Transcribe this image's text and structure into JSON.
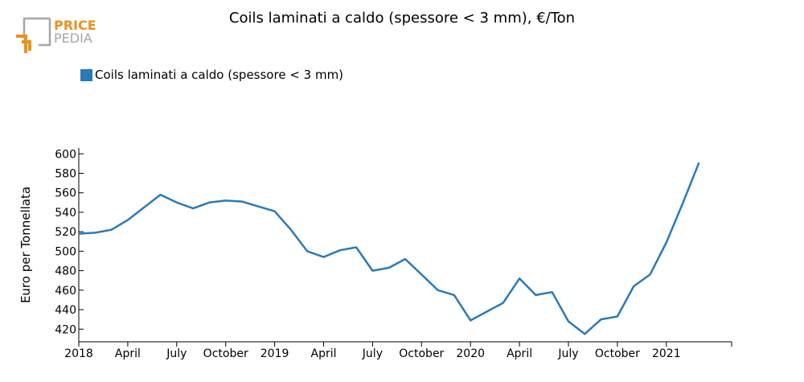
{
  "logo": {
    "line1": "PRICE",
    "line2": "PEDIA"
  },
  "colors": {
    "series": "#2a7ab9",
    "logo_orange": "#e8931c",
    "logo_gray": "#a6a6a6"
  },
  "chart_data": {
    "type": "line",
    "title": "Coils laminati a caldo (spessore < 3 mm), €/Ton",
    "ylabel": "Euro per Tonnellata",
    "xlabel": "",
    "ylim": [
      407,
      606
    ],
    "yticks": [
      420,
      440,
      460,
      480,
      500,
      520,
      540,
      560,
      580,
      600
    ],
    "xlim": [
      "2018-01",
      "2021-05"
    ],
    "xticks": [
      {
        "label": "2018",
        "date": "2018-01"
      },
      {
        "label": "April",
        "date": "2018-04"
      },
      {
        "label": "July",
        "date": "2018-07"
      },
      {
        "label": "October",
        "date": "2018-10"
      },
      {
        "label": "2019",
        "date": "2019-01"
      },
      {
        "label": "April",
        "date": "2019-04"
      },
      {
        "label": "July",
        "date": "2019-07"
      },
      {
        "label": "October",
        "date": "2019-10"
      },
      {
        "label": "2020",
        "date": "2020-01"
      },
      {
        "label": "April",
        "date": "2020-04"
      },
      {
        "label": "July",
        "date": "2020-07"
      },
      {
        "label": "October",
        "date": "2020-10"
      },
      {
        "label": "2021",
        "date": "2021-01"
      }
    ],
    "legend": "top-left",
    "series": [
      {
        "name": "Coils laminati a caldo (spessore < 3 mm)",
        "x": [
          "2018-01",
          "2018-02",
          "2018-03",
          "2018-04",
          "2018-05",
          "2018-06",
          "2018-07",
          "2018-08",
          "2018-09",
          "2018-10",
          "2018-11",
          "2018-12",
          "2019-01",
          "2019-02",
          "2019-03",
          "2019-04",
          "2019-05",
          "2019-06",
          "2019-07",
          "2019-08",
          "2019-09",
          "2019-10",
          "2019-11",
          "2019-12",
          "2020-01",
          "2020-02",
          "2020-03",
          "2020-04",
          "2020-05",
          "2020-06",
          "2020-07",
          "2020-08",
          "2020-09",
          "2020-10",
          "2020-11",
          "2020-12",
          "2021-01",
          "2021-02",
          "2021-03"
        ],
        "values": [
          518,
          519,
          522,
          532,
          545,
          558,
          550,
          544,
          550,
          552,
          551,
          546,
          541,
          522,
          500,
          494,
          501,
          504,
          480,
          483,
          492,
          476,
          460,
          455,
          429,
          438,
          447,
          472,
          455,
          458,
          428,
          415,
          430,
          433,
          464,
          476,
          509,
          549,
          591
        ]
      }
    ]
  }
}
